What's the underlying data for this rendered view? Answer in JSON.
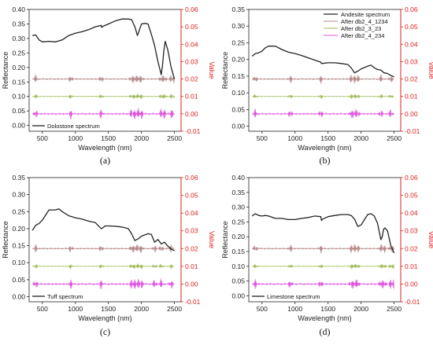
{
  "colors": {
    "spectrum": "#222222",
    "after_db2_4_1234": "#b5898a",
    "after_db2_3_23": "#9ebb55",
    "after_db2_4_234": "#dd55dd",
    "right_axis": "#dd2222"
  },
  "legend_names": [
    "Andesite spectrum",
    "After db2_4_1234",
    "After db2_3_23",
    "After db2_4_234"
  ],
  "chart_data": [
    {
      "type": "line",
      "panel_label": "(a)",
      "xlabel": "Wavelength (nm)",
      "ylabel": "Reflectance",
      "y2label": "Value",
      "xlim": [
        300,
        2600
      ],
      "ylim": [
        -0.02,
        0.4
      ],
      "y2lim": [
        -0.01,
        0.06
      ],
      "xticks": [
        "500",
        "1000",
        "1500",
        "2000",
        "2500"
      ],
      "yticks": [
        "0.00",
        "0.05",
        "0.10",
        "0.15",
        "0.20",
        "0.25",
        "0.30",
        "0.35",
        "0.40"
      ],
      "y2ticks": [
        "-0.01",
        "0.00",
        "0.01",
        "0.02",
        "0.03",
        "0.04",
        "0.05",
        "0.06"
      ],
      "legend": "Dolostone spectrum",
      "legend_position": "bottom-left",
      "spectrum": {
        "name": "Dolostone spectrum",
        "x": [
          350,
          400,
          450,
          500,
          600,
          700,
          800,
          900,
          1000,
          1100,
          1200,
          1300,
          1390,
          1400,
          1420,
          1500,
          1600,
          1700,
          1800,
          1850,
          1900,
          1940,
          2000,
          2050,
          2100,
          2150,
          2200,
          2250,
          2300,
          2320,
          2340,
          2360,
          2400,
          2450,
          2500
        ],
        "y": [
          0.31,
          0.312,
          0.295,
          0.288,
          0.29,
          0.288,
          0.295,
          0.31,
          0.318,
          0.323,
          0.33,
          0.34,
          0.345,
          0.338,
          0.342,
          0.35,
          0.36,
          0.367,
          0.367,
          0.365,
          0.34,
          0.31,
          0.35,
          0.352,
          0.35,
          0.315,
          0.275,
          0.22,
          0.175,
          0.21,
          0.26,
          0.29,
          0.26,
          0.2,
          0.16
        ]
      },
      "residual_baselines": [
        {
          "name": "After db2_4_1234",
          "value": 0.02
        },
        {
          "name": "After db2_3_23",
          "value": 0.01
        },
        {
          "name": "After db2_4_234",
          "value": 0.0
        }
      ],
      "noise_features_nm": [
        400,
        930,
        1390,
        1850,
        1900,
        1950,
        2000,
        2300,
        2350,
        2450,
        2500
      ]
    },
    {
      "type": "line",
      "panel_label": "(b)",
      "xlabel": "Wavelength (nm)",
      "ylabel": "Reflectance",
      "y2label": "Value",
      "xlim": [
        300,
        2600
      ],
      "ylim": [
        -0.015,
        0.35
      ],
      "y2lim": [
        -0.01,
        0.06
      ],
      "xticks": [
        "500",
        "1000",
        "1500",
        "2000",
        "2500"
      ],
      "yticks": [
        "0.00",
        "0.05",
        "0.10",
        "0.15",
        "0.20",
        "0.25",
        "0.30",
        "0.35"
      ],
      "y2ticks": [
        "-0.01",
        "0.00",
        "0.01",
        "0.02",
        "0.03",
        "0.04",
        "0.05",
        "0.06"
      ],
      "legend": "Andesite spectrum",
      "legend_position": "top-right",
      "spectrum": {
        "name": "Andesite spectrum",
        "x": [
          350,
          400,
          450,
          500,
          550,
          600,
          700,
          800,
          900,
          1000,
          1100,
          1200,
          1300,
          1390,
          1400,
          1500,
          1600,
          1700,
          1800,
          1850,
          1900,
          1950,
          2000,
          2100,
          2150,
          2200,
          2250,
          2300,
          2350,
          2400,
          2450,
          2500
        ],
        "y": [
          0.21,
          0.218,
          0.22,
          0.225,
          0.235,
          0.24,
          0.24,
          0.23,
          0.222,
          0.218,
          0.212,
          0.205,
          0.198,
          0.192,
          0.188,
          0.19,
          0.19,
          0.188,
          0.185,
          0.175,
          0.16,
          0.165,
          0.172,
          0.18,
          0.183,
          0.175,
          0.17,
          0.168,
          0.16,
          0.158,
          0.152,
          0.148
        ]
      },
      "residual_baselines": [
        {
          "name": "After db2_4_1234",
          "value": 0.02
        },
        {
          "name": "After db2_3_23",
          "value": 0.01
        },
        {
          "name": "After db2_4_234",
          "value": 0.0
        }
      ],
      "noise_features_nm": [
        400,
        930,
        1390,
        1850,
        1900,
        1950,
        2300,
        2450
      ]
    },
    {
      "type": "line",
      "panel_label": "(c)",
      "xlabel": "Wavelength (nm)",
      "ylabel": "Reflectance",
      "y2label": "Value",
      "xlim": [
        300,
        2600
      ],
      "ylim": [
        -0.015,
        0.35
      ],
      "y2lim": [
        -0.01,
        0.06
      ],
      "xticks": [
        "500",
        "1000",
        "1500",
        "2000",
        "2500"
      ],
      "yticks": [
        "0.00",
        "0.05",
        "0.10",
        "0.15",
        "0.20",
        "0.25",
        "0.30",
        "0.35"
      ],
      "y2ticks": [
        "-0.01",
        "0.00",
        "0.01",
        "0.02",
        "0.03",
        "0.04",
        "0.05",
        "0.06"
      ],
      "legend": "Tuff spectrum",
      "legend_position": "bottom-left",
      "spectrum": {
        "name": "Tuff spectrum",
        "x": [
          350,
          400,
          450,
          500,
          550,
          600,
          700,
          750,
          800,
          900,
          1000,
          1100,
          1200,
          1300,
          1390,
          1400,
          1450,
          1500,
          1600,
          1700,
          1800,
          1850,
          1900,
          1950,
          2000,
          2100,
          2150,
          2200,
          2250,
          2300,
          2350,
          2400,
          2450,
          2500
        ],
        "y": [
          0.195,
          0.21,
          0.215,
          0.225,
          0.24,
          0.255,
          0.255,
          0.258,
          0.25,
          0.238,
          0.232,
          0.228,
          0.222,
          0.218,
          0.2,
          0.2,
          0.208,
          0.208,
          0.207,
          0.205,
          0.2,
          0.185,
          0.165,
          0.17,
          0.178,
          0.185,
          0.183,
          0.16,
          0.168,
          0.155,
          0.16,
          0.148,
          0.14,
          0.135
        ]
      },
      "residual_baselines": [
        {
          "name": "After db2_4_1234",
          "value": 0.02
        },
        {
          "name": "After db2_3_23",
          "value": 0.01
        },
        {
          "name": "After db2_4_234",
          "value": 0.0
        }
      ],
      "noise_features_nm": [
        400,
        930,
        1390,
        1850,
        1900,
        1950,
        2000,
        2200,
        2300,
        2450
      ]
    },
    {
      "type": "line",
      "panel_label": "(d)",
      "xlabel": "Wavelength (nm)",
      "ylabel": "Reflectance",
      "y2label": "Value",
      "xlim": [
        300,
        2600
      ],
      "ylim": [
        -0.02,
        0.4
      ],
      "y2lim": [
        -0.01,
        0.06
      ],
      "xticks": [
        "500",
        "1000",
        "1500",
        "2000",
        "2500"
      ],
      "yticks": [
        "0.00",
        "0.05",
        "0.10",
        "0.15",
        "0.20",
        "0.25",
        "0.30",
        "0.35",
        "0.40"
      ],
      "y2ticks": [
        "-0.01",
        "0.00",
        "0.01",
        "0.02",
        "0.03",
        "0.04",
        "0.05",
        "0.06"
      ],
      "legend": "Limestone spectrum",
      "legend_position": "bottom-left",
      "spectrum": {
        "name": "Limestone spectrum",
        "x": [
          350,
          400,
          450,
          500,
          550,
          600,
          700,
          800,
          900,
          1000,
          1100,
          1200,
          1300,
          1390,
          1400,
          1420,
          1500,
          1600,
          1700,
          1800,
          1850,
          1900,
          1950,
          2000,
          2100,
          2150,
          2200,
          2250,
          2300,
          2320,
          2340,
          2360,
          2400,
          2450,
          2500
        ],
        "y": [
          0.27,
          0.278,
          0.272,
          0.27,
          0.272,
          0.27,
          0.262,
          0.262,
          0.258,
          0.258,
          0.262,
          0.265,
          0.27,
          0.268,
          0.255,
          0.26,
          0.268,
          0.272,
          0.275,
          0.275,
          0.272,
          0.26,
          0.235,
          0.24,
          0.275,
          0.278,
          0.27,
          0.245,
          0.19,
          0.2,
          0.225,
          0.23,
          0.22,
          0.17,
          0.145
        ]
      },
      "residual_baselines": [
        {
          "name": "After db2_4_1234",
          "value": 0.02
        },
        {
          "name": "After db2_3_23",
          "value": 0.01
        },
        {
          "name": "After db2_4_234",
          "value": 0.0
        }
      ],
      "noise_features_nm": [
        400,
        930,
        1390,
        1850,
        1900,
        1950,
        2300,
        2350,
        2450,
        2500
      ]
    }
  ]
}
